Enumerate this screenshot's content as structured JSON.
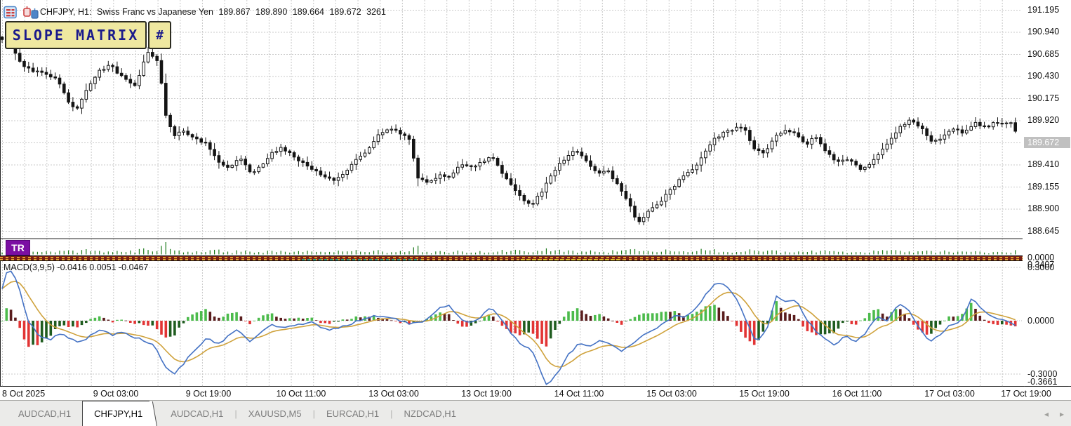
{
  "header": {
    "symbol": "CHFJPY, H1:",
    "description": "Swiss Franc vs Japanese Yen",
    "open": "189.867",
    "high": "189.890",
    "low": "189.664",
    "close": "189.672",
    "ticks": "3261"
  },
  "overlay_panel": {
    "label": "SLOPE MATRIX",
    "button": "#"
  },
  "price_axis": {
    "labels": [
      "191.195",
      "190.940",
      "190.685",
      "190.430",
      "190.175",
      "189.920",
      "189.410",
      "189.155",
      "188.900",
      "188.645"
    ],
    "current": "189.672",
    "tr_zero": "0.0000",
    "macd_max": "0.3407",
    "macd_grid_hi": "0.3000",
    "macd_zero": "0.0000",
    "macd_grid_lo": "-0.3000",
    "macd_min": "-0.3661"
  },
  "tr_pane": {
    "badge": "TR"
  },
  "macd_pane": {
    "label": "MACD(3,9,5) -0.0416 0.0051 -0.0467"
  },
  "time_axis": {
    "labels": [
      "8 Oct 2025",
      "9 Oct 03:00",
      "9 Oct 19:00",
      "10 Oct 11:00",
      "13 Oct 03:00",
      "13 Oct 19:00",
      "14 Oct 11:00",
      "15 Oct 03:00",
      "15 Oct 19:00",
      "16 Oct 11:00",
      "17 Oct 03:00",
      "17 Oct 19:00"
    ],
    "centers": [
      33,
      165,
      297,
      429,
      561,
      693,
      825,
      957,
      1089,
      1221,
      1353,
      1462
    ]
  },
  "tabs": {
    "items": [
      {
        "label": "AUDCAD,H1",
        "active": false
      },
      {
        "label": "CHFJPY,H1",
        "active": true
      },
      {
        "label": "AUDCAD,H1",
        "active": false
      },
      {
        "label": "XAUUSD,M5",
        "active": false
      },
      {
        "label": "EURCAD,H1",
        "active": false
      },
      {
        "label": "NZDCAD,H1",
        "active": false
      }
    ],
    "nav_left": "◂",
    "nav_right": "▸"
  },
  "colors": {
    "grid": "#c9c9c9",
    "outline": "#141414",
    "bull": "#ffffff",
    "bear": "#141414",
    "macd_line": "#4472c4",
    "signal_line": "#cfa23c",
    "hist_up": "#4cbb4c",
    "hist_up_dim": "#1f5c1f",
    "hist_down": "#e23434",
    "hist_down_dim": "#5a1d1d",
    "tr_bar": "#1a7a1a",
    "axis_line": "#222222",
    "panel_bg": "#efe8a0",
    "panel_text": "#1a1a8c",
    "badge_bg": "#7b0fa3",
    "current_tag_bg": "#c0c0c0"
  },
  "chart_data": {
    "type": "candlestick",
    "symbol": "CHFJPY",
    "timeframe": "H1",
    "ohlc_readout": [
      189.867,
      189.89,
      189.664,
      189.672
    ],
    "tick_volume": 3261,
    "current_price": 189.672,
    "price_grid_step": 0.255,
    "price_axis_values": [
      191.195,
      190.94,
      190.685,
      190.43,
      190.175,
      189.92,
      189.41,
      189.155,
      188.9,
      188.645
    ],
    "candle_count": 230,
    "price_path": [
      [
        0,
        190.87
      ],
      [
        14,
        190.83
      ],
      [
        30,
        190.58
      ],
      [
        46,
        190.5
      ],
      [
        62,
        190.45
      ],
      [
        80,
        190.4
      ],
      [
        98,
        190.14
      ],
      [
        110,
        190.04
      ],
      [
        124,
        190.27
      ],
      [
        140,
        190.49
      ],
      [
        158,
        190.55
      ],
      [
        174,
        190.42
      ],
      [
        194,
        190.33
      ],
      [
        210,
        190.7
      ],
      [
        226,
        190.6
      ],
      [
        236,
        189.98
      ],
      [
        248,
        189.73
      ],
      [
        262,
        189.8
      ],
      [
        278,
        189.72
      ],
      [
        294,
        189.65
      ],
      [
        310,
        189.45
      ],
      [
        326,
        189.38
      ],
      [
        342,
        189.5
      ],
      [
        356,
        189.31
      ],
      [
        372,
        189.38
      ],
      [
        388,
        189.56
      ],
      [
        404,
        189.6
      ],
      [
        420,
        189.48
      ],
      [
        438,
        189.4
      ],
      [
        458,
        189.3
      ],
      [
        476,
        189.22
      ],
      [
        492,
        189.33
      ],
      [
        508,
        189.46
      ],
      [
        524,
        189.56
      ],
      [
        540,
        189.78
      ],
      [
        556,
        189.82
      ],
      [
        572,
        189.76
      ],
      [
        584,
        189.7
      ],
      [
        596,
        189.26
      ],
      [
        610,
        189.18
      ],
      [
        626,
        189.3
      ],
      [
        642,
        189.26
      ],
      [
        658,
        189.42
      ],
      [
        674,
        189.38
      ],
      [
        688,
        189.46
      ],
      [
        702,
        189.5
      ],
      [
        716,
        189.31
      ],
      [
        730,
        189.15
      ],
      [
        744,
        189.02
      ],
      [
        758,
        188.94
      ],
      [
        774,
        189.12
      ],
      [
        790,
        189.33
      ],
      [
        806,
        189.5
      ],
      [
        820,
        189.58
      ],
      [
        836,
        189.43
      ],
      [
        850,
        189.31
      ],
      [
        866,
        189.34
      ],
      [
        880,
        189.19
      ],
      [
        894,
        188.98
      ],
      [
        910,
        188.74
      ],
      [
        924,
        188.87
      ],
      [
        940,
        188.97
      ],
      [
        956,
        189.13
      ],
      [
        972,
        189.26
      ],
      [
        988,
        189.35
      ],
      [
        1002,
        189.5
      ],
      [
        1016,
        189.69
      ],
      [
        1030,
        189.78
      ],
      [
        1046,
        189.82
      ],
      [
        1058,
        189.86
      ],
      [
        1074,
        189.6
      ],
      [
        1088,
        189.54
      ],
      [
        1104,
        189.73
      ],
      [
        1118,
        189.82
      ],
      [
        1134,
        189.78
      ],
      [
        1148,
        189.63
      ],
      [
        1162,
        189.73
      ],
      [
        1178,
        189.55
      ],
      [
        1194,
        189.43
      ],
      [
        1210,
        189.47
      ],
      [
        1226,
        189.35
      ],
      [
        1240,
        189.43
      ],
      [
        1256,
        189.58
      ],
      [
        1270,
        189.7
      ],
      [
        1284,
        189.85
      ],
      [
        1298,
        189.93
      ],
      [
        1314,
        189.82
      ],
      [
        1328,
        189.66
      ],
      [
        1344,
        189.73
      ],
      [
        1358,
        189.81
      ],
      [
        1374,
        189.78
      ],
      [
        1390,
        189.89
      ],
      [
        1406,
        189.85
      ],
      [
        1420,
        189.9
      ],
      [
        1436,
        189.87
      ],
      [
        1444,
        189.9
      ],
      [
        1450,
        189.67
      ]
    ],
    "subwindows": [
      {
        "name": "TR",
        "scale_labels": [
          "0.0000"
        ]
      },
      {
        "name": "MACD",
        "params": [
          3,
          9,
          5
        ],
        "values": [
          -0.0416,
          0.0051,
          -0.0467
        ],
        "scale_labels": [
          "0.3407",
          "0.3000",
          "0.0000",
          "-0.3000",
          "-0.3661"
        ],
        "macd_path": [
          [
            0,
            0.13
          ],
          [
            12,
            0.3
          ],
          [
            25,
            0.22
          ],
          [
            40,
            0.0
          ],
          [
            55,
            -0.08
          ],
          [
            70,
            -0.11
          ],
          [
            85,
            -0.07
          ],
          [
            100,
            -0.1
          ],
          [
            115,
            -0.12
          ],
          [
            130,
            -0.08
          ],
          [
            145,
            -0.05
          ],
          [
            160,
            -0.08
          ],
          [
            175,
            -0.06
          ],
          [
            190,
            -0.09
          ],
          [
            205,
            -0.11
          ],
          [
            220,
            -0.14
          ],
          [
            235,
            -0.26
          ],
          [
            248,
            -0.3
          ],
          [
            262,
            -0.24
          ],
          [
            278,
            -0.16
          ],
          [
            295,
            -0.1
          ],
          [
            310,
            -0.13
          ],
          [
            325,
            -0.09
          ],
          [
            340,
            -0.05
          ],
          [
            355,
            -0.12
          ],
          [
            370,
            -0.07
          ],
          [
            385,
            -0.02
          ],
          [
            405,
            -0.04
          ],
          [
            425,
            -0.02
          ],
          [
            445,
            -0.01
          ],
          [
            465,
            -0.05
          ],
          [
            485,
            -0.04
          ],
          [
            505,
            -0.01
          ],
          [
            525,
            0.02
          ],
          [
            545,
            0.03
          ],
          [
            565,
            0.01
          ],
          [
            585,
            -0.02
          ],
          [
            605,
            0.0
          ],
          [
            622,
            0.06
          ],
          [
            638,
            0.09
          ],
          [
            652,
            0.03
          ],
          [
            668,
            -0.02
          ],
          [
            684,
            0.02
          ],
          [
            698,
            0.07
          ],
          [
            712,
            0.03
          ],
          [
            726,
            -0.06
          ],
          [
            742,
            -0.13
          ],
          [
            758,
            -0.16
          ],
          [
            772,
            -0.3
          ],
          [
            780,
            -0.365
          ],
          [
            795,
            -0.29
          ],
          [
            810,
            -0.19
          ],
          [
            825,
            -0.13
          ],
          [
            840,
            -0.15
          ],
          [
            855,
            -0.11
          ],
          [
            870,
            -0.13
          ],
          [
            885,
            -0.17
          ],
          [
            900,
            -0.13
          ],
          [
            915,
            -0.09
          ],
          [
            930,
            -0.05
          ],
          [
            945,
            -0.02
          ],
          [
            960,
            0.03
          ],
          [
            975,
            0.02
          ],
          [
            990,
            0.06
          ],
          [
            1005,
            0.14
          ],
          [
            1020,
            0.22
          ],
          [
            1035,
            0.2
          ],
          [
            1050,
            0.12
          ],
          [
            1065,
            -0.02
          ],
          [
            1078,
            -0.12
          ],
          [
            1092,
            -0.06
          ],
          [
            1106,
            0.14
          ],
          [
            1120,
            0.1
          ],
          [
            1134,
            0.12
          ],
          [
            1148,
            0.02
          ],
          [
            1162,
            -0.06
          ],
          [
            1176,
            -0.1
          ],
          [
            1190,
            -0.14
          ],
          [
            1205,
            -0.08
          ],
          [
            1220,
            -0.12
          ],
          [
            1235,
            -0.06
          ],
          [
            1250,
            0.02
          ],
          [
            1265,
            0.0
          ],
          [
            1280,
            0.1
          ],
          [
            1295,
            0.06
          ],
          [
            1310,
            -0.04
          ],
          [
            1325,
            -0.12
          ],
          [
            1340,
            -0.08
          ],
          [
            1355,
            -0.02
          ],
          [
            1370,
            0.0
          ],
          [
            1385,
            0.13
          ],
          [
            1400,
            0.06
          ],
          [
            1415,
            0.02
          ],
          [
            1430,
            0.01
          ],
          [
            1440,
            -0.01
          ],
          [
            1450,
            -0.0416
          ]
        ]
      }
    ],
    "time_labels": [
      "8 Oct 2025",
      "9 Oct 03:00",
      "9 Oct 19:00",
      "10 Oct 11:00",
      "13 Oct 03:00",
      "13 Oct 19:00",
      "14 Oct 11:00",
      "15 Oct 03:00",
      "15 Oct 19:00",
      "16 Oct 11:00",
      "17 Oct 03:00",
      "17 Oct 19:00"
    ]
  }
}
